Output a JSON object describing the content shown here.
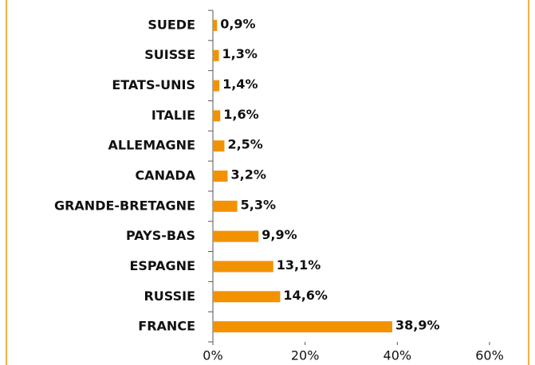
{
  "chart_data": {
    "type": "bar",
    "orientation": "horizontal",
    "categories": [
      "SUEDE",
      "SUISSE",
      "ETATS-UNIS",
      "ITALIE",
      "ALLEMAGNE",
      "CANADA",
      "GRANDE-BRETAGNE",
      "PAYS-BAS",
      "ESPAGNE",
      "RUSSIE",
      "FRANCE"
    ],
    "values": [
      0.9,
      1.3,
      1.4,
      1.6,
      2.5,
      3.2,
      5.3,
      9.9,
      13.1,
      14.6,
      38.9
    ],
    "value_labels": [
      "0,9%",
      "1,3%",
      "1,4%",
      "1,6%",
      "2,5%",
      "3,2%",
      "5,3%",
      "9,9%",
      "13,1%",
      "14,6%",
      "38,9%"
    ],
    "color": "#f39200",
    "xlim": [
      0,
      60
    ],
    "xticks": [
      {
        "value": 0,
        "label": "0%"
      },
      {
        "value": 20,
        "label": "20%"
      },
      {
        "value": 40,
        "label": "40%"
      },
      {
        "value": 60,
        "label": "60%"
      }
    ]
  }
}
